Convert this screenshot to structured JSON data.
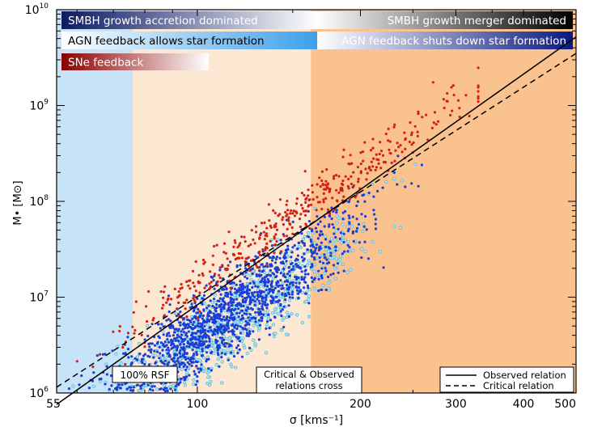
{
  "chart_data": {
    "type": "scatter",
    "x_scale": "log",
    "y_scale": "log",
    "xlim": [
      55,
      500
    ],
    "ylim": [
      1000000,
      10000000000
    ],
    "xlabel": "σ [kms⁻¹]",
    "ylabel": "M• [M⊙]",
    "x_ticks": [
      {
        "value": 55,
        "label": "55"
      },
      {
        "value": 100,
        "label": "100"
      },
      {
        "value": 200,
        "label": "200"
      },
      {
        "value": 300,
        "label": "300"
      },
      {
        "value": 400,
        "label": "400"
      },
      {
        "value": 500,
        "label": "500"
      }
    ],
    "y_ticks": [
      {
        "value": 1000000,
        "base": "10",
        "exp": "6"
      },
      {
        "value": 10000000,
        "base": "10",
        "exp": "7"
      },
      {
        "value": 100000000,
        "base": "10",
        "exp": "8"
      },
      {
        "value": 1000000000,
        "base": "10",
        "exp": "9"
      },
      {
        "value": 10000000000,
        "base": "10",
        "exp": "10"
      }
    ],
    "regions": [
      {
        "x0": 55,
        "x1": 76,
        "color": "#c7e3f7"
      },
      {
        "x0": 76,
        "x1": 162,
        "color": "#fbe7d2"
      },
      {
        "x0": 162,
        "x1": 500,
        "color": "#f9c28f"
      }
    ],
    "regime_bars": [
      {
        "text": "SMBH growth accretion dominated",
        "align": "left",
        "from": "#0b1a63",
        "to": "#ffffff",
        "text_color": "#ffffff"
      },
      {
        "text": "SMBH growth merger dominated",
        "align": "right",
        "from": "#ffffff",
        "to": "#000000",
        "text_color": "#ffffff"
      },
      {
        "text": "AGN feedback allows star formation",
        "align": "left",
        "from": "#ffffff",
        "to": "#3da0ea",
        "text_color": "#000000"
      },
      {
        "text": "AGN feedback shuts down star formation",
        "align": "right",
        "from": "#ffffff",
        "to": "#0a1a80",
        "text_color": "#ffffff"
      },
      {
        "text": "SNe feedback",
        "align": "left",
        "from": "#8b0000",
        "to": "#ffffff",
        "text_color": "#ffffff"
      }
    ],
    "annotations": [
      {
        "text": "100% RSF"
      },
      {
        "line1": "Critical & Observed",
        "line2": "relations cross"
      }
    ],
    "series": [
      {
        "name": "Observed relation",
        "style": "solid",
        "color": "#000000",
        "points": [
          [
            55,
            760000
          ],
          [
            500,
            5200000000
          ]
        ]
      },
      {
        "name": "Critical relation",
        "style": "dashed",
        "color": "#000000",
        "points": [
          [
            55,
            1150000
          ],
          [
            500,
            3500000000
          ]
        ]
      }
    ],
    "scatter_groups": [
      {
        "color": "#d42010",
        "marker": "dot",
        "x_range": [
          60,
          330
        ],
        "note": "above relation"
      },
      {
        "color": "#1a3fd6",
        "marker": "dot",
        "x_range": [
          55,
          340
        ],
        "note": "main population"
      },
      {
        "color": "#49b9d8",
        "marker": "circle",
        "x_range": [
          55,
          280
        ],
        "note": "below relation"
      }
    ],
    "legend": {
      "placement": "bottom-right",
      "entries": [
        "Observed relation",
        "Critical relation"
      ]
    }
  }
}
